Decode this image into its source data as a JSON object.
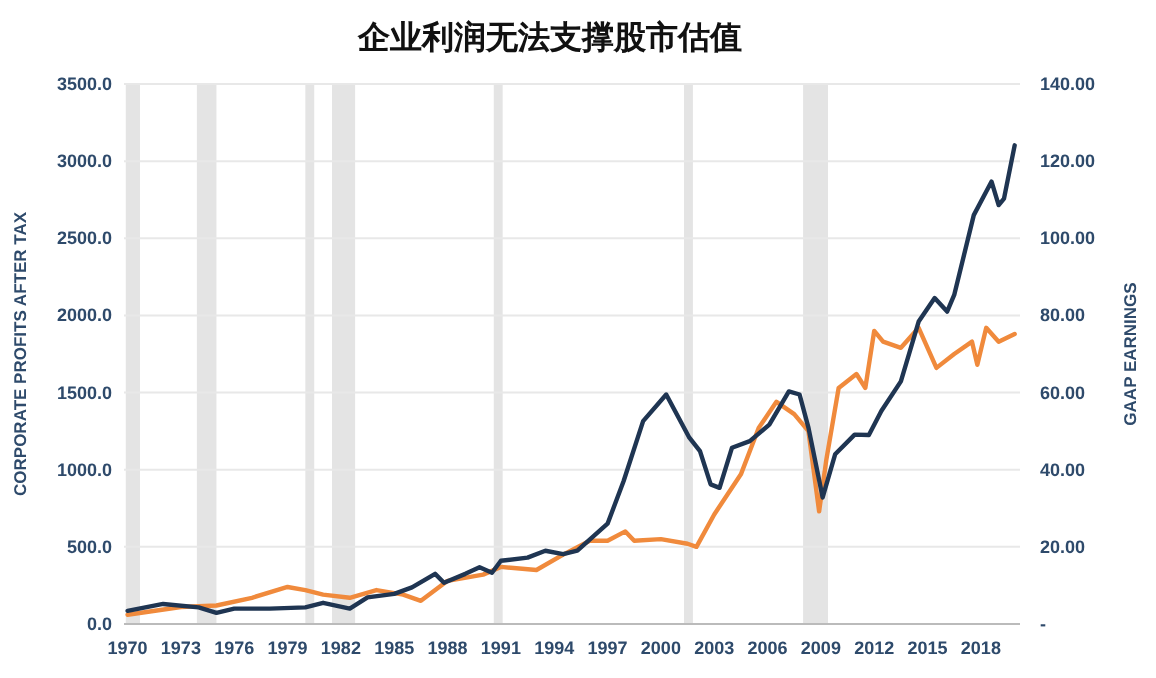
{
  "chart_data": {
    "type": "line",
    "title": "企业利润无法支撑股市估值",
    "ylabel": "CORPORATE PROFITS AFTER TAX",
    "y2label": "GAAP EARNINGS",
    "xlim": [
      1969.8,
      2020.2
    ],
    "xticks": [
      1970,
      1973,
      1976,
      1979,
      1982,
      1985,
      1988,
      1991,
      1994,
      1997,
      2000,
      2003,
      2006,
      2009,
      2012,
      2015,
      2018
    ],
    "ylim": [
      0,
      3500
    ],
    "yticks": [
      {
        "value": 0,
        "label": "0.0"
      },
      {
        "value": 500,
        "label": "500.0"
      },
      {
        "value": 1000,
        "label": "1000.0"
      },
      {
        "value": 1500,
        "label": "1500.0"
      },
      {
        "value": 2000,
        "label": "2000.0"
      },
      {
        "value": 2500,
        "label": "2500.0"
      },
      {
        "value": 3000,
        "label": "3000.0"
      },
      {
        "value": 3500,
        "label": "3500.0"
      }
    ],
    "y2lim": [
      0,
      140
    ],
    "y2ticks": [
      {
        "value": 0,
        "label": "-"
      },
      {
        "value": 20,
        "label": "20.00"
      },
      {
        "value": 40,
        "label": "40.00"
      },
      {
        "value": 60,
        "label": "60.00"
      },
      {
        "value": 80,
        "label": "80.00"
      },
      {
        "value": 100,
        "label": "100.00"
      },
      {
        "value": 120,
        "label": "120.00"
      },
      {
        "value": 140,
        "label": "140.00"
      }
    ],
    "grid": "y",
    "line_style": "solid",
    "marker": "none",
    "series": [
      {
        "color": "#f08a3c",
        "x": [
          1970,
          1973,
          1975,
          1977,
          1979,
          1980,
          1981,
          1982.5,
          1984,
          1985.5,
          1986.5,
          1988,
          1990,
          1991,
          1993,
          1994.5,
          1996,
          1997,
          1998,
          1998.5,
          2000,
          2001.5,
          2002,
          2003,
          2004.5,
          2005.5,
          2006.5,
          2007.5,
          2008.3,
          2008.9,
          2009.3,
          2010,
          2011,
          2011.5,
          2012,
          2012.5,
          2013.5,
          2014.5,
          2015.5,
          2016.5,
          2017.5,
          2017.8,
          2018.3,
          2019,
          2019.9
        ],
        "values": [
          60,
          110,
          120,
          170,
          240,
          220,
          190,
          170,
          220,
          190,
          150,
          280,
          320,
          370,
          350,
          450,
          540,
          540,
          600,
          540,
          550,
          520,
          500,
          710,
          970,
          1270,
          1440,
          1360,
          1250,
          730,
          1060,
          1530,
          1620,
          1530,
          1900,
          1830,
          1790,
          1920,
          1660,
          1750,
          1830,
          1680,
          1920,
          1830,
          1880
        ]
      },
      {
        "color": "#1f3552",
        "axis": "y2",
        "x": [
          1970,
          1972,
          1974,
          1975,
          1976,
          1978,
          1980,
          1981,
          1982.5,
          1983.5,
          1985,
          1986,
          1987.3,
          1987.8,
          1989,
          1989.8,
          1990.5,
          1991,
          1992.5,
          1993.5,
          1994.5,
          1995.3,
          1997,
          1997.9,
          1999,
          2000.3,
          2001.6,
          2002.2,
          2002.8,
          2003.3,
          2004,
          2005,
          2006.1,
          2007.2,
          2007.8,
          2008.3,
          2009.1,
          2009.8,
          2010.9,
          2011.7,
          2012.4,
          2013.5,
          2014.5,
          2015.4,
          2016.1,
          2016.5,
          2017.6,
          2018.6,
          2019,
          2019.3,
          2019.9
        ],
        "values": [
          3.4,
          5.2,
          4.3,
          2.9,
          4,
          4,
          4.3,
          5.5,
          4,
          6.9,
          7.8,
          9.5,
          13,
          10.7,
          13,
          14.7,
          13.3,
          16.4,
          17.2,
          19,
          18.1,
          19,
          26,
          37,
          52.6,
          59.5,
          48.3,
          44.8,
          36.2,
          35.3,
          45.7,
          47.4,
          51.7,
          60.3,
          59.5,
          50.9,
          32.8,
          44,
          49.1,
          49,
          55.2,
          62.9,
          78.4,
          84.5,
          81,
          85.3,
          106,
          114.7,
          108.6,
          110.3,
          124.1
        ]
      }
    ],
    "bands": [
      {
        "axis": "x",
        "from": 1969.9,
        "to": 1970.7,
        "color": "#e4e4e4"
      },
      {
        "axis": "x",
        "from": 1973.9,
        "to": 1975,
        "color": "#e4e4e4"
      },
      {
        "axis": "x",
        "from": 1980,
        "to": 1980.5,
        "color": "#e4e4e4"
      },
      {
        "axis": "x",
        "from": 1981.5,
        "to": 1982.8,
        "color": "#e4e4e4"
      },
      {
        "axis": "x",
        "from": 1990.6,
        "to": 1991.1,
        "color": "#e4e4e4"
      },
      {
        "axis": "x",
        "from": 2001.3,
        "to": 2001.8,
        "color": "#e4e4e4"
      },
      {
        "axis": "x",
        "from": 2008,
        "to": 2009.4,
        "color": "#e4e4e4"
      }
    ]
  }
}
